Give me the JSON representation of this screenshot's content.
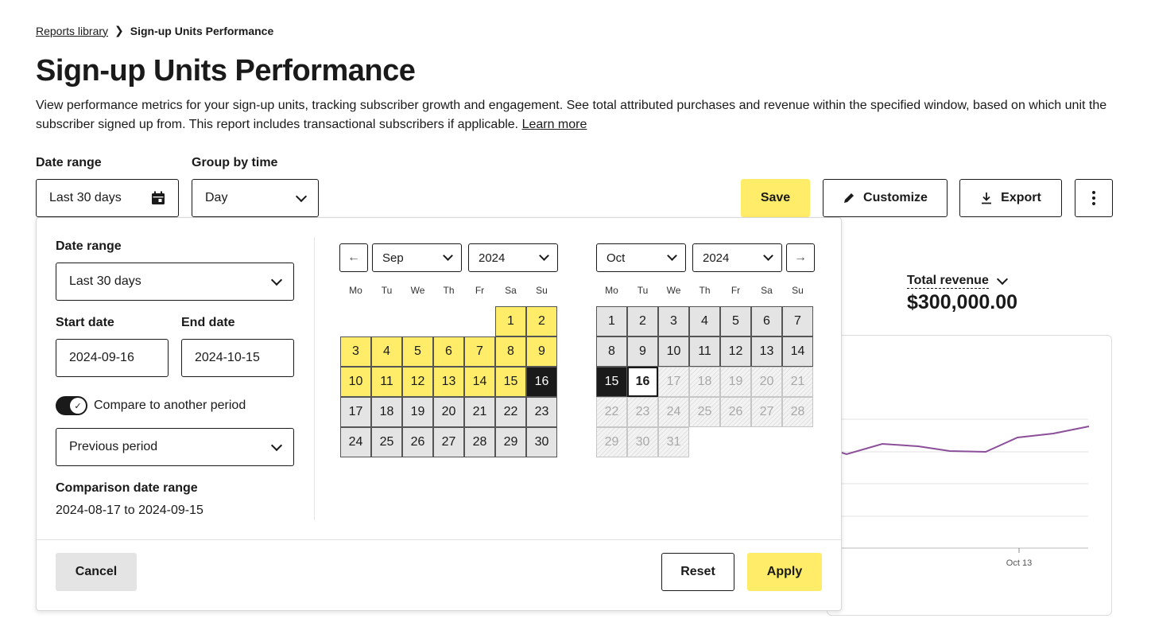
{
  "breadcrumb": {
    "parent": "Reports library",
    "current": "Sign-up Units Performance"
  },
  "page": {
    "title": "Sign-up Units Performance",
    "description": "View performance metrics for your sign-up units, tracking subscriber growth and engagement. See total attributed purchases and revenue within the specified window, based on which unit the subscriber signed up from. This report includes transactional subscribers if applicable.",
    "learn_more": "Learn more"
  },
  "filters": {
    "date_range_label": "Date range",
    "date_range_value": "Last 30 days",
    "group_by_label": "Group by time",
    "group_by_value": "Day"
  },
  "toolbar": {
    "save": "Save",
    "customize": "Customize",
    "export": "Export"
  },
  "metric": {
    "label": "Total revenue",
    "value": "$300,000.00"
  },
  "chart": {
    "tick_label": "Oct 13",
    "series": [
      [
        1040,
        563
      ],
      [
        1065,
        571
      ],
      [
        1110,
        558
      ],
      [
        1155,
        561
      ],
      [
        1195,
        567
      ],
      [
        1240,
        568
      ],
      [
        1280,
        550
      ],
      [
        1325,
        545
      ],
      [
        1370,
        536
      ]
    ]
  },
  "popover": {
    "date_range_label": "Date range",
    "date_range_value": "Last 30 days",
    "start_label": "Start date",
    "start_value": "2024-09-16",
    "end_label": "End date",
    "end_value": "2024-10-15",
    "compare_label": "Compare to another period",
    "compare_value": "Previous period",
    "comparison_label": "Comparison date range",
    "comparison_value": "2024-08-17 to 2024-09-15",
    "cancel": "Cancel",
    "reset": "Reset",
    "apply": "Apply"
  },
  "calendars": {
    "weekdays": [
      "Mo",
      "Tu",
      "We",
      "Th",
      "Fr",
      "Sa",
      "Su"
    ],
    "left": {
      "month": "Sep",
      "year": "2024",
      "first_weekday": 6,
      "days": 30,
      "states": {
        "1": "sel",
        "2": "sel",
        "3": "sel",
        "4": "sel",
        "5": "sel",
        "6": "sel",
        "7": "sel",
        "8": "sel",
        "9": "sel",
        "10": "sel",
        "11": "sel",
        "12": "sel",
        "13": "sel",
        "14": "sel",
        "15": "sel",
        "16": "dark"
      },
      "default_state": "norm"
    },
    "right": {
      "month": "Oct",
      "year": "2024",
      "first_weekday": 1,
      "days": 31,
      "states": {
        "15": "dark",
        "16": "today",
        "17": "dis",
        "18": "dis",
        "19": "dis",
        "20": "dis",
        "21": "dis",
        "22": "dis",
        "23": "dis",
        "24": "dis",
        "25": "dis",
        "26": "dis",
        "27": "dis",
        "28": "dis",
        "29": "dis",
        "30": "dis",
        "31": "dis"
      },
      "default_state": "norm"
    }
  },
  "icons": {
    "calendar": "calendar-icon",
    "chevron": "chevron-down-icon",
    "pencil": "pencil-icon",
    "download": "download-icon",
    "more": "more-vertical-icon",
    "prev": "arrow-left-icon",
    "next": "arrow-right-icon",
    "check": "check-icon"
  },
  "colors": {
    "accent": "#ffec68",
    "dark": "#1a1a1a",
    "neutral": "#e4e4e4",
    "line": "#8b4f9a"
  }
}
